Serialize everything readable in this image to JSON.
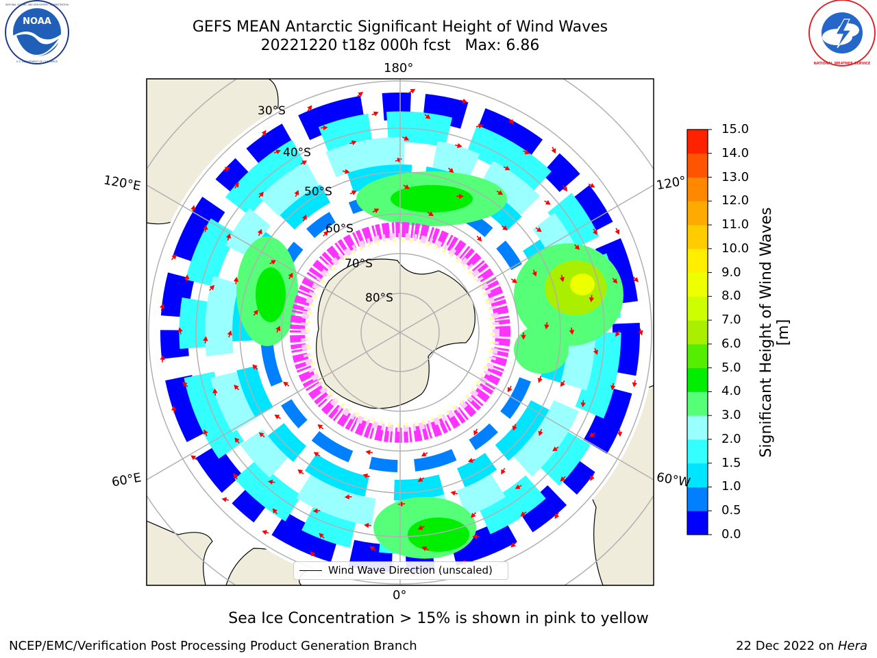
{
  "header": {
    "title_line1": "GEFS MEAN Antarctic Significant Height of Wind Waves",
    "title_line2": "20221220 t18z 000h fcst   Max: 6.86"
  },
  "logos": {
    "left": "noaa-logo",
    "right": "nws-logo",
    "left_text": "NOAA",
    "left_ring_text": "NATIONAL OCEANIC AND ATMOSPHERIC ADMINISTRATION",
    "left_bottom_text": "U.S. DEPARTMENT OF COMMERCE",
    "right_ring_text": "NATIONAL WEATHER SERVICE"
  },
  "map": {
    "projection": "south-polar-stereographic",
    "longitude_labels": {
      "top": "180°",
      "bottom": "0°",
      "upper_left": "120°E",
      "upper_right": "120°",
      "lower_left": "60°E",
      "lower_right": "60°W"
    },
    "latitude_labels": [
      "30°S",
      "40°S",
      "50°S",
      "60°S",
      "70°S",
      "80°S"
    ],
    "legend": {
      "label": "Wind Wave Direction (unscaled)",
      "line_color": "#000000"
    },
    "arrow_color": "#ff0000",
    "land_color": "#efecdc",
    "sea_ice_colors": [
      "#ff33ff",
      "#ffccff",
      "#ffffaa"
    ]
  },
  "colorbar": {
    "title": "Significant Height of Wind Waves [m]",
    "ticks": [
      "0.0",
      "0.5",
      "1.0",
      "1.5",
      "2.0",
      "3.0",
      "4.0",
      "5.0",
      "6.0",
      "7.0",
      "8.0",
      "9.0",
      "10.0",
      "11.0",
      "12.0",
      "13.0",
      "14.0",
      "15.0"
    ],
    "colors": [
      "#0000ff",
      "#0080ff",
      "#00e5ff",
      "#33ffff",
      "#99ffff",
      "#55ff77",
      "#00ee00",
      "#55ee00",
      "#aaee00",
      "#ccff00",
      "#eeff00",
      "#ffee00",
      "#ffcc00",
      "#ffaa00",
      "#ff8800",
      "#ff5500",
      "#ff2200"
    ]
  },
  "notes": {
    "sea_ice": "Sea Ice Concentration > 15% is shown in pink to yellow"
  },
  "footer": {
    "left": "NCEP/EMC/Verification Post Processing Product Generation Branch",
    "right_prefix": "22 Dec 2022 on ",
    "right_host": "Hera"
  }
}
